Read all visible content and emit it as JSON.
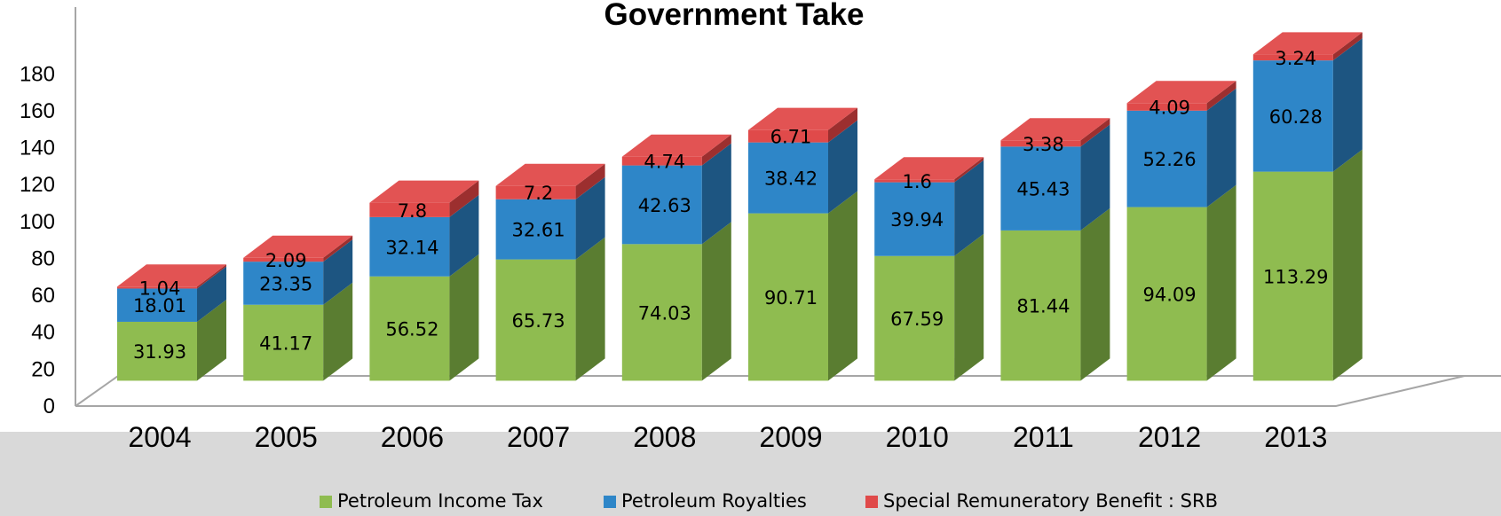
{
  "chart_data": {
    "type": "bar",
    "stacked": true,
    "three_d": true,
    "title": "Government Take",
    "xlabel": "",
    "ylabel": "",
    "ylim": [
      0,
      180
    ],
    "yticks": [
      0,
      20,
      40,
      60,
      80,
      100,
      120,
      140,
      160,
      180
    ],
    "grid": false,
    "legend_position": "bottom",
    "categories": [
      "2004",
      "2005",
      "2006",
      "2007",
      "2008",
      "2009",
      "2010",
      "2011",
      "2012",
      "2013"
    ],
    "series": [
      {
        "name": "Petroleum Income Tax",
        "color": "#8fbc50",
        "side_color": "#5a7d31",
        "values": [
          31.93,
          41.17,
          56.52,
          65.73,
          74.03,
          90.71,
          67.59,
          81.44,
          94.09,
          113.29
        ]
      },
      {
        "name": "Petroleum Royalties",
        "color": "#2e86c8",
        "side_color": "#1d5581",
        "values": [
          18.01,
          23.35,
          32.14,
          32.61,
          42.63,
          38.42,
          39.94,
          45.43,
          52.26,
          60.28
        ]
      },
      {
        "name": "Special Remuneratory Benefit : SRB",
        "color": "#e04a4a",
        "side_color": "#9c2f2f",
        "values": [
          1.04,
          2.09,
          7.8,
          7.2,
          4.74,
          6.71,
          1.6,
          3.38,
          4.09,
          3.24
        ]
      }
    ]
  }
}
